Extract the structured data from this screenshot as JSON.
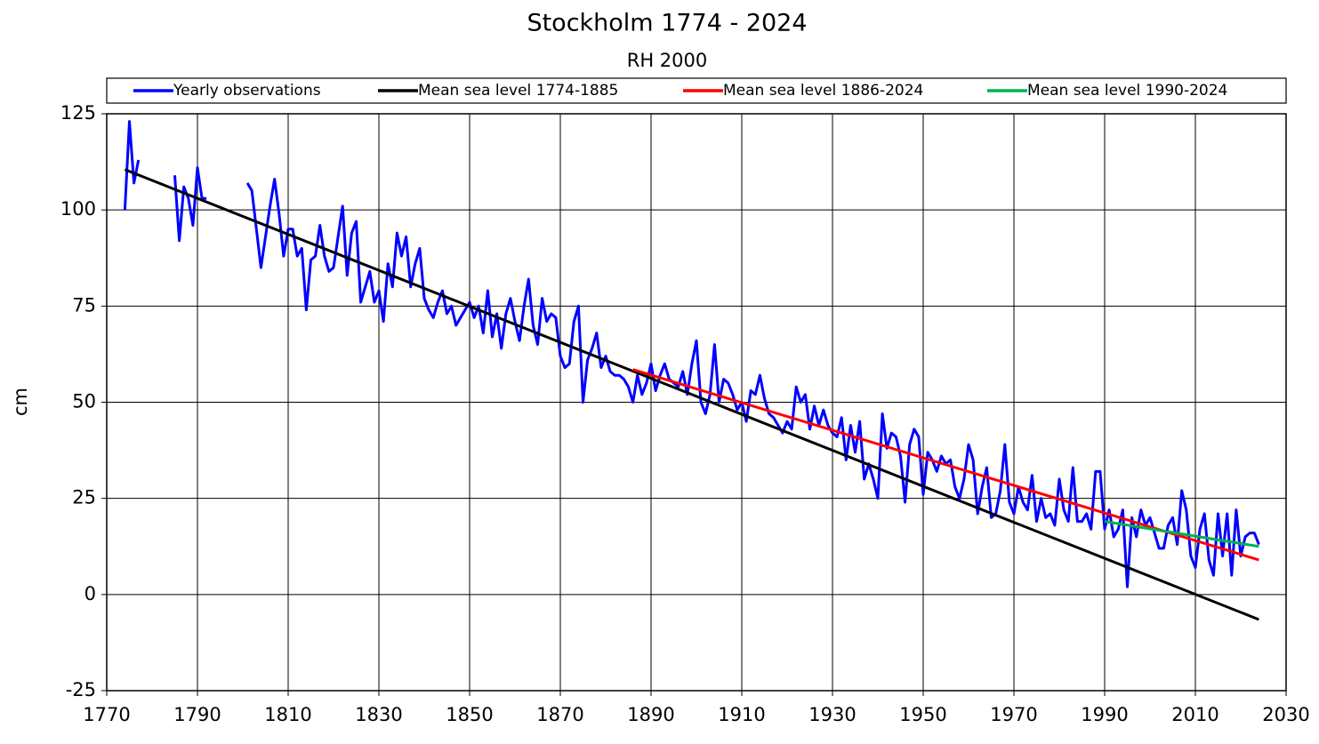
{
  "chart_data": {
    "type": "line",
    "title": "Stockholm 1774 - 2024",
    "subtitle": "RH 2000",
    "y_label": "cm",
    "xlim": [
      1770,
      2030
    ],
    "xticks": [
      1770,
      1790,
      1810,
      1830,
      1850,
      1870,
      1890,
      1910,
      1930,
      1950,
      1970,
      1990,
      2010,
      2030
    ],
    "ylim": [
      -25,
      125
    ],
    "yticks": [
      -25,
      0,
      25,
      50,
      75,
      100,
      125
    ],
    "grid": true,
    "legend": "top",
    "series": [
      {
        "name": "Yearly observations",
        "color": "#0000ff",
        "x": [
          1774,
          1775,
          1776,
          1777,
          1778,
          1779,
          1780,
          1781,
          1782,
          1783,
          1784,
          1785,
          1786,
          1787,
          1788,
          1789,
          1790,
          1791,
          1792,
          1793,
          1794,
          1795,
          1796,
          1797,
          1798,
          1799,
          1800,
          1801,
          1802,
          1803,
          1804,
          1805,
          1806,
          1807,
          1808,
          1809,
          1810,
          1811,
          1812,
          1813,
          1814,
          1815,
          1816,
          1817,
          1818,
          1819,
          1820,
          1821,
          1822,
          1823,
          1824,
          1825,
          1826,
          1827,
          1828,
          1829,
          1830,
          1831,
          1832,
          1833,
          1834,
          1835,
          1836,
          1837,
          1838,
          1839,
          1840,
          1841,
          1842,
          1843,
          1844,
          1845,
          1846,
          1847,
          1848,
          1849,
          1850,
          1851,
          1852,
          1853,
          1854,
          1855,
          1856,
          1857,
          1858,
          1859,
          1860,
          1861,
          1862,
          1863,
          1864,
          1865,
          1866,
          1867,
          1868,
          1869,
          1870,
          1871,
          1872,
          1873,
          1874,
          1875,
          1876,
          1877,
          1878,
          1879,
          1880,
          1881,
          1882,
          1883,
          1884,
          1885,
          1886,
          1887,
          1888,
          1889,
          1890,
          1891,
          1892,
          1893,
          1894,
          1895,
          1896,
          1897,
          1898,
          1899,
          1900,
          1901,
          1902,
          1903,
          1904,
          1905,
          1906,
          1907,
          1908,
          1909,
          1910,
          1911,
          1912,
          1913,
          1914,
          1915,
          1916,
          1917,
          1918,
          1919,
          1920,
          1921,
          1922,
          1923,
          1924,
          1925,
          1926,
          1927,
          1928,
          1929,
          1930,
          1931,
          1932,
          1933,
          1934,
          1935,
          1936,
          1937,
          1938,
          1939,
          1940,
          1941,
          1942,
          1943,
          1944,
          1945,
          1946,
          1947,
          1948,
          1949,
          1950,
          1951,
          1952,
          1953,
          1954,
          1955,
          1956,
          1957,
          1958,
          1959,
          1960,
          1961,
          1962,
          1963,
          1964,
          1965,
          1966,
          1967,
          1968,
          1969,
          1970,
          1971,
          1972,
          1973,
          1974,
          1975,
          1976,
          1977,
          1978,
          1979,
          1980,
          1981,
          1982,
          1983,
          1984,
          1985,
          1986,
          1987,
          1988,
          1989,
          1990,
          1991,
          1992,
          1993,
          1994,
          1995,
          1996,
          1997,
          1998,
          1999,
          2000,
          2001,
          2002,
          2003,
          2004,
          2005,
          2006,
          2007,
          2008,
          2009,
          2010,
          2011,
          2012,
          2013,
          2014,
          2015,
          2016,
          2017,
          2018,
          2019,
          2020,
          2021,
          2022,
          2023,
          2024
        ],
        "values": [
          100,
          123,
          107,
          113,
          null,
          null,
          null,
          null,
          null,
          null,
          null,
          109,
          92,
          106,
          103,
          96,
          111,
          103,
          103,
          null,
          null,
          null,
          null,
          null,
          null,
          null,
          null,
          107,
          105,
          95,
          85,
          93,
          101,
          108,
          99,
          88,
          95,
          95,
          88,
          90,
          74,
          87,
          88,
          96,
          88,
          84,
          85,
          93,
          101,
          83,
          94,
          97,
          76,
          80,
          84,
          76,
          79,
          71,
          86,
          80,
          94,
          88,
          93,
          80,
          86,
          90,
          77,
          74,
          72,
          76,
          79,
          73,
          75,
          70,
          72,
          74,
          76,
          72,
          75,
          68,
          79,
          67,
          73,
          64,
          73,
          77,
          71,
          66,
          75,
          82,
          70,
          65,
          77,
          71,
          73,
          72,
          62,
          59,
          60,
          71,
          75,
          50,
          61,
          64,
          68,
          59,
          62,
          58,
          57,
          57,
          56,
          54,
          50,
          57,
          52,
          55,
          60,
          53,
          57,
          60,
          56,
          55,
          54,
          58,
          52,
          60,
          66,
          50,
          47,
          52,
          65,
          50,
          56,
          55,
          52,
          48,
          50,
          45,
          53,
          52,
          57,
          51,
          47,
          46,
          44,
          42,
          45,
          43,
          54,
          50,
          52,
          43,
          49,
          44,
          48,
          44,
          42,
          41,
          46,
          35,
          44,
          37,
          45,
          30,
          34,
          30,
          25,
          47,
          38,
          42,
          41,
          36,
          24,
          39,
          43,
          41,
          26,
          37,
          35,
          32,
          36,
          34,
          35,
          28,
          25,
          30,
          39,
          35,
          21,
          28,
          33,
          20,
          21,
          27,
          39,
          24,
          21,
          28,
          24,
          22,
          31,
          19,
          25,
          20,
          21,
          18,
          30,
          22,
          19,
          33,
          19,
          19,
          21,
          17,
          32,
          32,
          17,
          22,
          15,
          17,
          22,
          2,
          20,
          15,
          22,
          18,
          20,
          16,
          12,
          12,
          18,
          20,
          13,
          27,
          22,
          10,
          7,
          17,
          21,
          9,
          5,
          21,
          10,
          21,
          5,
          22,
          10,
          15,
          16,
          16,
          13
        ]
      },
      {
        "name": "Mean sea level 1774-1885",
        "color": "#000000",
        "x": [
          1774,
          2024
        ],
        "values": [
          110.5,
          -6.5
        ]
      },
      {
        "name": "Mean sea level 1886-2024",
        "color": "#ff0000",
        "x": [
          1886,
          2024
        ],
        "values": [
          58.5,
          9
        ]
      },
      {
        "name": "Mean sea level 1990-2024",
        "color": "#00b050",
        "x": [
          1990,
          2024
        ],
        "values": [
          19,
          12.5
        ]
      }
    ]
  }
}
